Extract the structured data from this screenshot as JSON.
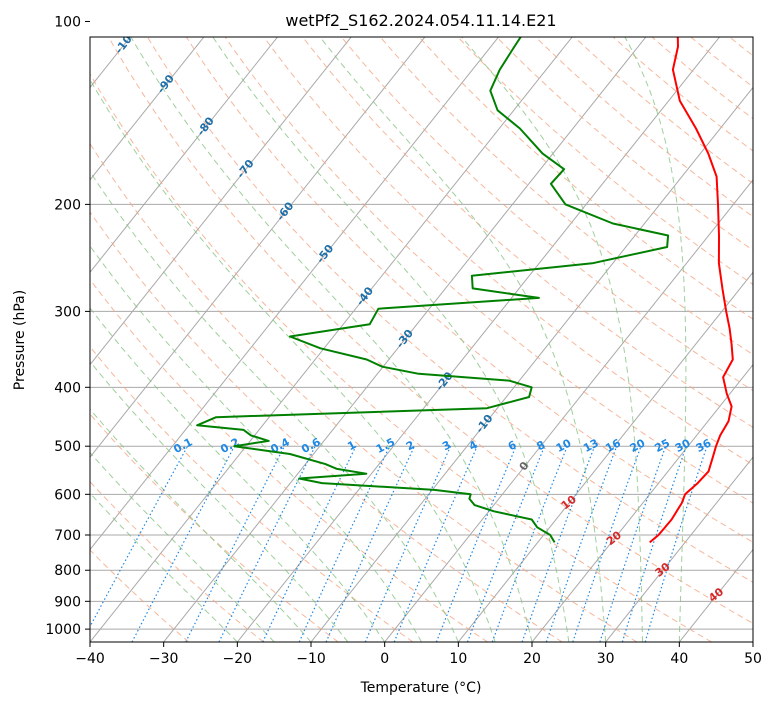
{
  "chart_data": {
    "type": "skew-t log-p",
    "title": "wetPf2_S162.2024.054.11.14.E21",
    "xlabel": "Temperature (°C)",
    "ylabel": "Pressure (hPa)",
    "xlim": [
      -40,
      50
    ],
    "ylim": [
      1050,
      100
    ],
    "yscale": "log",
    "x_ticks": [
      "−40",
      "−30",
      "−20",
      "−10",
      "0",
      "10",
      "20",
      "30",
      "40",
      "50"
    ],
    "y_ticks": [
      "100",
      "200",
      "300",
      "400",
      "500",
      "600",
      "700",
      "800",
      "900",
      "1000"
    ],
    "colors": {
      "temperature": "#ff0000",
      "dewpoint": "#008000",
      "isotherm": "#a9a9a9",
      "dry_adiabat": "#f4a582",
      "moist_adiabat": "#7fbf7b",
      "mixing_ratio": "#1e88e5",
      "isotherm_label": "#1f6fa8",
      "adiabat_label": "#d62728"
    },
    "isotherm_labels": [
      "-100",
      "-90",
      "-80",
      "-70",
      "-60",
      "-50",
      "-40",
      "-30",
      "-20",
      "-10",
      "0"
    ],
    "dry_adiabat_labels": [
      "10",
      "20",
      "30",
      "40"
    ],
    "mixing_ratio_labels": [
      "0.1",
      "0.2",
      "0.4",
      "0.6",
      "1",
      "1.5",
      "2",
      "3",
      "4",
      "6",
      "8",
      "10",
      "13",
      "16",
      "20",
      "25",
      "30",
      "36"
    ],
    "series": [
      {
        "key": "temperature",
        "points": [
          [
            720,
            25.2
          ],
          [
            700,
            25.6
          ],
          [
            660,
            25.7
          ],
          [
            620,
            25.3
          ],
          [
            600,
            24.8
          ],
          [
            575,
            25.3
          ],
          [
            550,
            25.5
          ],
          [
            520,
            24.5
          ],
          [
            500,
            23.8
          ],
          [
            480,
            23.2
          ],
          [
            455,
            22.8
          ],
          [
            430,
            21.6
          ],
          [
            410,
            19.6
          ],
          [
            385,
            17.3
          ],
          [
            360,
            16.7
          ],
          [
            340,
            14.9
          ],
          [
            320,
            12.9
          ],
          [
            300,
            10.6
          ],
          [
            275,
            7.6
          ],
          [
            250,
            4.4
          ],
          [
            225,
            1.4
          ],
          [
            200,
            -2.1
          ],
          [
            180,
            -5.3
          ],
          [
            165,
            -8.9
          ],
          [
            150,
            -13.3
          ],
          [
            135,
            -18.5
          ],
          [
            120,
            -22.8
          ],
          [
            110,
            -24.6
          ],
          [
            100,
            -27.4
          ]
        ]
      },
      {
        "key": "dewpoint",
        "points": [
          [
            720,
            12.3
          ],
          [
            700,
            10.9
          ],
          [
            680,
            8.3
          ],
          [
            660,
            6.7
          ],
          [
            640,
            0.7
          ],
          [
            625,
            -2.6
          ],
          [
            610,
            -4.0
          ],
          [
            600,
            -4.3
          ],
          [
            590,
            -9.7
          ],
          [
            575,
            -25.7
          ],
          [
            565,
            -29.3
          ],
          [
            555,
            -20.7
          ],
          [
            545,
            -25.2
          ],
          [
            535,
            -27.3
          ],
          [
            515,
            -33.2
          ],
          [
            500,
            -41.6
          ],
          [
            490,
            -37.5
          ],
          [
            480,
            -40.5
          ],
          [
            470,
            -42.1
          ],
          [
            462,
            -48.9
          ],
          [
            448,
            -47.2
          ],
          [
            433,
            -11.4
          ],
          [
            415,
            -6.9
          ],
          [
            400,
            -7.6
          ],
          [
            390,
            -11.4
          ],
          [
            380,
            -24.4
          ],
          [
            370,
            -30.1
          ],
          [
            360,
            -33.0
          ],
          [
            345,
            -40.5
          ],
          [
            330,
            -45.9
          ],
          [
            315,
            -36.4
          ],
          [
            297,
            -36.9
          ],
          [
            285,
            -16.3
          ],
          [
            275,
            -26.3
          ],
          [
            262,
            -27.8
          ],
          [
            250,
            -12.8
          ],
          [
            235,
            -4.4
          ],
          [
            225,
            -5.5
          ],
          [
            215,
            -14.3
          ],
          [
            200,
            -22.8
          ],
          [
            185,
            -27.0
          ],
          [
            175,
            -26.8
          ],
          [
            165,
            -31.4
          ],
          [
            150,
            -37.2
          ],
          [
            140,
            -42.2
          ],
          [
            130,
            -45.3
          ],
          [
            120,
            -46.3
          ],
          [
            110,
            -46.8
          ],
          [
            100,
            -47.3
          ]
        ]
      }
    ]
  }
}
